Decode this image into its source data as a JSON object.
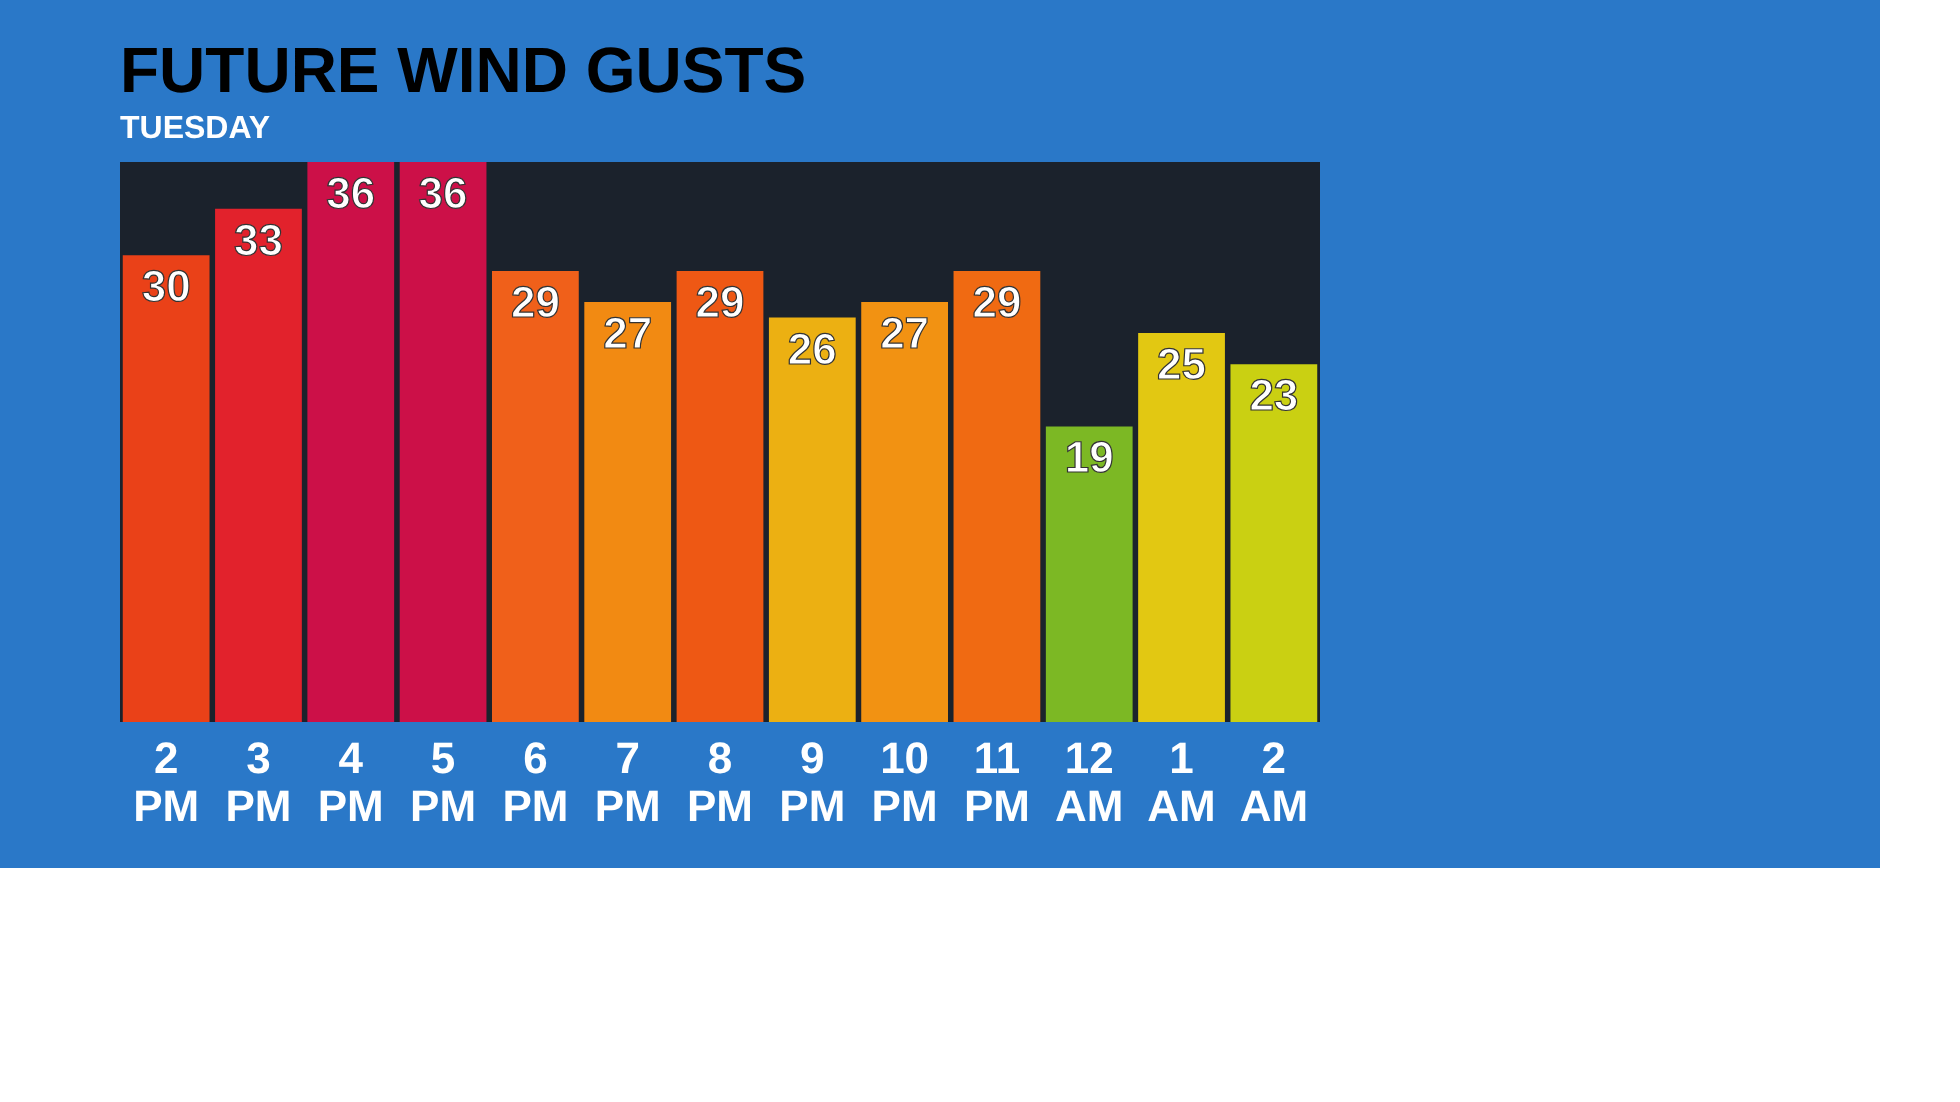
{
  "chart_data": {
    "type": "bar",
    "title": "FUTURE WIND GUSTS",
    "subtitle": "TUESDAY",
    "categories": [
      "2 PM",
      "3 PM",
      "4 PM",
      "5 PM",
      "6 PM",
      "7 PM",
      "8 PM",
      "9 PM",
      "10 PM",
      "11 PM",
      "12 AM",
      "1 AM",
      "2 AM"
    ],
    "values": [
      30,
      33,
      36,
      36,
      29,
      27,
      29,
      26,
      27,
      29,
      19,
      25,
      23
    ],
    "colors": [
      "#ea4118",
      "#e2222c",
      "#cc1048",
      "#cc1048",
      "#f0601a",
      "#f28a12",
      "#ee5814",
      "#ecb012",
      "#f29212",
      "#f06a12",
      "#7cb824",
      "#e2c812",
      "#cad012"
    ],
    "ylim": [
      0,
      36
    ],
    "data_labels": true
  }
}
